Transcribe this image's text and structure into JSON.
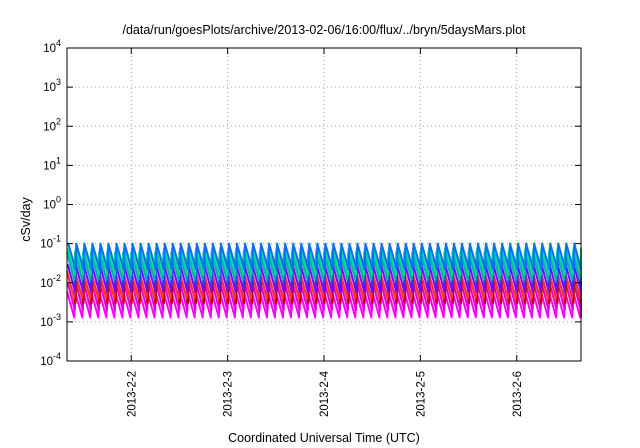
{
  "chart_data": {
    "type": "line",
    "title": "/data/run/goesPlots/archive/2013-02-06/16:00/flux/../bryn/5daysMars.plot",
    "xlabel": "Coordinated Universal Time (UTC)",
    "ylabel": "cSv/day",
    "yscale": "log",
    "ylim": [
      0.0001,
      10000
    ],
    "y_ticks": [
      {
        "base": "10",
        "exp": "-4"
      },
      {
        "base": "10",
        "exp": "-3"
      },
      {
        "base": "10",
        "exp": "-2"
      },
      {
        "base": "10",
        "exp": "-1"
      },
      {
        "base": "10",
        "exp": "0"
      },
      {
        "base": "10",
        "exp": "1"
      },
      {
        "base": "10",
        "exp": "2"
      },
      {
        "base": "10",
        "exp": "3"
      },
      {
        "base": "10",
        "exp": "4"
      }
    ],
    "x_range": [
      "2013-02-01T08:00",
      "2013-02-06T16:00"
    ],
    "x_ticks": [
      {
        "date": "2013-02-02",
        "label": "2013-2-2"
      },
      {
        "date": "2013-02-03",
        "label": "2013-2-3"
      },
      {
        "date": "2013-02-04",
        "label": "2013-2-4"
      },
      {
        "date": "2013-02-05",
        "label": "2013-2-5"
      },
      {
        "date": "2013-02-06",
        "label": "2013-2-6"
      }
    ],
    "grid": true,
    "pattern": "sawtooth",
    "cycles_per_day": 12,
    "series": [
      {
        "color": "#ff00ff",
        "peak": 0.006,
        "trough": 0.0013
      },
      {
        "color": "#dd00dd",
        "peak": 0.01,
        "trough": 0.002
      },
      {
        "color": "#c00000",
        "peak": 0.014,
        "trough": 0.003
      },
      {
        "color": "#ff3333",
        "peak": 0.02,
        "trough": 0.004
      },
      {
        "color": "#8000ff",
        "peak": 0.03,
        "trough": 0.006
      },
      {
        "color": "#3333ff",
        "peak": 0.045,
        "trough": 0.009
      },
      {
        "color": "#00b0b0",
        "peak": 0.06,
        "trough": 0.012
      },
      {
        "color": "#00dd88",
        "peak": 0.075,
        "trough": 0.016
      },
      {
        "color": "#0070ff",
        "peak": 0.1,
        "trough": 0.022
      }
    ]
  }
}
